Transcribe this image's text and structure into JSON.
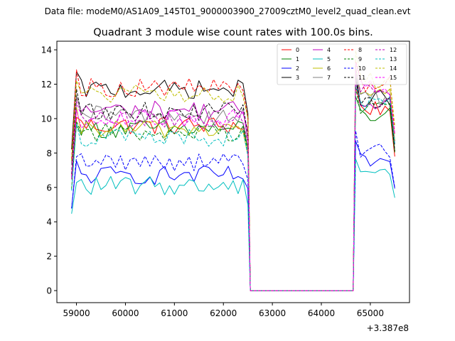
{
  "chart_data": {
    "type": "line",
    "suptitle": "Data file: modeM0/AS1A09_145T01_9000003900_27009cztM0_level2_quad_clean.evt",
    "title": "Quadrant 3 module wise count rates with 100.0s bins.",
    "xlabel": "",
    "ylabel": "",
    "x_offset_label": "+3.387e8",
    "xlim": [
      58600,
      65800
    ],
    "ylim": [
      -0.7,
      14.5
    ],
    "x_ticks": [
      59000,
      60000,
      61000,
      62000,
      63000,
      64000,
      65000
    ],
    "y_ticks": [
      0,
      2,
      4,
      6,
      8,
      10,
      12,
      14
    ],
    "grid": false,
    "legend_position": "top-right",
    "segments": [
      {
        "start": 58900,
        "end": 62500,
        "step": 100
      },
      {
        "start": 62550,
        "end": 64650,
        "step": 100
      },
      {
        "start": 64700,
        "end": 65500,
        "step": 100
      }
    ],
    "series": [
      {
        "name": "0",
        "color": "#ff0000",
        "style": "solid",
        "level": 9.6,
        "seg3": 10.6
      },
      {
        "name": "1",
        "color": "#008000",
        "style": "solid",
        "level": 9.4,
        "seg3": 10.2
      },
      {
        "name": "2",
        "color": "#0000ff",
        "style": "solid",
        "level": 6.7,
        "seg3": 7.5
      },
      {
        "name": "3",
        "color": "#000000",
        "style": "solid",
        "level": 11.7,
        "seg3": 11.2
      },
      {
        "name": "4",
        "color": "#bf00bf",
        "style": "solid",
        "level": 10.5,
        "seg3": 11.0
      },
      {
        "name": "5",
        "color": "#00bfbf",
        "style": "solid",
        "level": 6.1,
        "seg3": 7.0
      },
      {
        "name": "6",
        "color": "#bfbf00",
        "style": "solid",
        "level": 9.4,
        "seg3": 11.4
      },
      {
        "name": "7",
        "color": "#808080",
        "style": "solid",
        "level": 10.2,
        "seg3": 11.2
      },
      {
        "name": "8",
        "color": "#ff0000",
        "style": "dashed",
        "level": 11.8,
        "seg3": 12.0
      },
      {
        "name": "9",
        "color": "#008000",
        "style": "dashed",
        "level": 9.2,
        "seg3": 10.8
      },
      {
        "name": "10",
        "color": "#0000ff",
        "style": "dashed",
        "level": 7.5,
        "seg3": 8.1
      },
      {
        "name": "11",
        "color": "#000000",
        "style": "dashed",
        "level": 10.4,
        "seg3": 11.0
      },
      {
        "name": "12",
        "color": "#bf00bf",
        "style": "dashed",
        "level": 9.9,
        "seg3": 11.6
      },
      {
        "name": "13",
        "color": "#00bfbf",
        "style": "dashed",
        "level": 8.9,
        "seg3": 10.9
      },
      {
        "name": "14",
        "color": "#bfbf00",
        "style": "dashed",
        "level": 11.4,
        "seg3": 12.3
      },
      {
        "name": "15",
        "color": "#ff00ff",
        "style": "dashed",
        "level": 10.0,
        "seg3": 11.8
      }
    ]
  }
}
